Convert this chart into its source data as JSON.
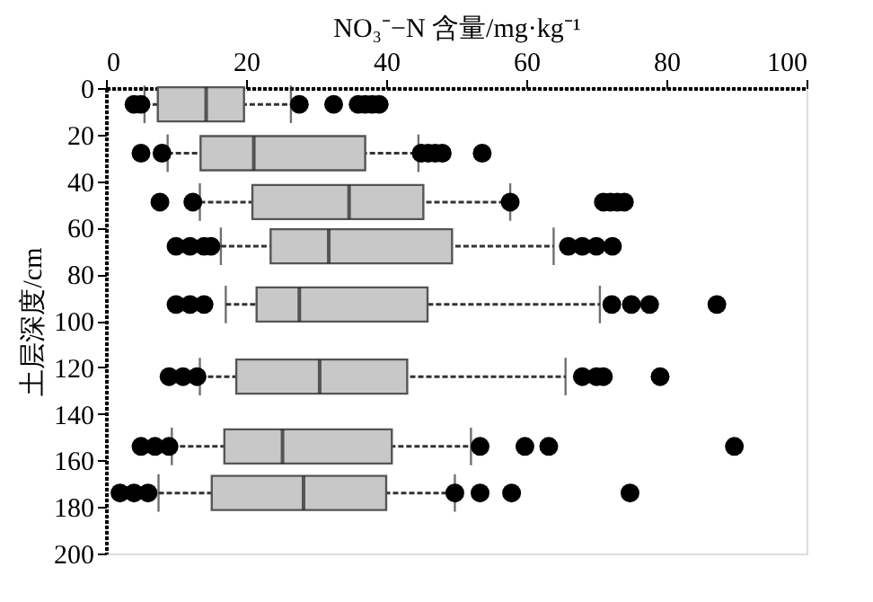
{
  "chart_data": {
    "type": "box",
    "orientation": "horizontal",
    "xlabel": "NO₃⁻−N 含量/mg·kg⁻¹",
    "ylabel": "土层深度/cm",
    "x": [
      7,
      28,
      49,
      68,
      93,
      124,
      154,
      174
    ],
    "xlim": [
      0,
      100
    ],
    "xticks": [
      0,
      20,
      40,
      60,
      80,
      100
    ],
    "ylim": [
      200,
      0
    ],
    "yticks": [
      0,
      20,
      40,
      60,
      80,
      100,
      120,
      140,
      160,
      180,
      200
    ],
    "color": "#c8c8c8",
    "grid": false,
    "marker": "circle",
    "boxes": [
      {
        "low": 5.5,
        "q1": 7.4,
        "median": 14.3,
        "q3": 19.7,
        "high": 26.4,
        "outliers": [
          4,
          5,
          27.6,
          32.5,
          36,
          37,
          38,
          39
        ]
      },
      {
        "low": 8.8,
        "q1": 13.5,
        "median": 21.1,
        "q3": 37,
        "high": 44.6,
        "outliers": [
          5,
          8,
          45,
          46,
          47,
          48,
          53.7
        ]
      },
      {
        "low": 13.4,
        "q1": 20.9,
        "median": 34.7,
        "q3": 45.3,
        "high": 57.7,
        "outliers": [
          7.7,
          12.4,
          57.7,
          71,
          72,
          73,
          74
        ]
      },
      {
        "low": 16.4,
        "q1": 23.5,
        "median": 31.8,
        "q3": 49.4,
        "high": 63.9,
        "outliers": [
          10,
          12,
          14,
          15,
          66,
          68,
          70,
          72.3
        ]
      },
      {
        "low": 17.1,
        "q1": 21.5,
        "median": 27.6,
        "q3": 45.9,
        "high": 70.5,
        "outliers": [
          10,
          12,
          14,
          72.2,
          75,
          77.6,
          87.2
        ]
      },
      {
        "low": 13.4,
        "q1": 18.6,
        "median": 30.5,
        "q3": 43,
        "high": 65.6,
        "outliers": [
          9,
          11,
          13,
          68,
          70,
          71,
          79.1
        ]
      },
      {
        "low": 9.4,
        "q1": 16.9,
        "median": 25.2,
        "q3": 40.8,
        "high": 52.1,
        "outliers": [
          5,
          7,
          9,
          53.4,
          59.8,
          63.2,
          89.7
        ]
      },
      {
        "low": 7.5,
        "q1": 15.1,
        "median": 28.2,
        "q3": 40,
        "high": 49.8,
        "outliers": [
          2,
          4,
          6,
          49.8,
          53.4,
          57.9,
          74.8
        ]
      }
    ]
  }
}
